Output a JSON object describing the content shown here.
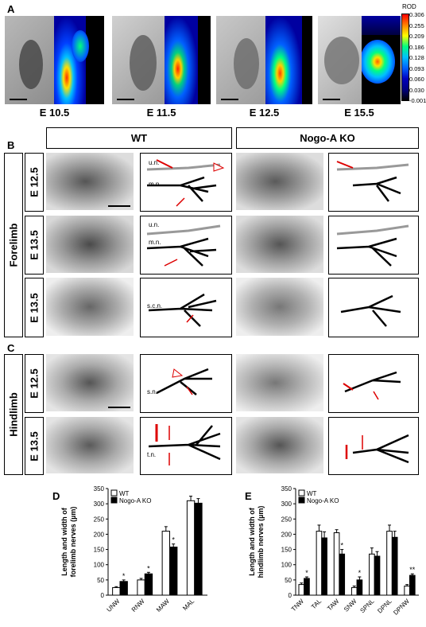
{
  "panels": {
    "A": "A",
    "B": "B",
    "C": "C",
    "D": "D",
    "E": "E"
  },
  "panelA": {
    "stages": [
      "E 10.5",
      "E 11.5",
      "E 12.5",
      "E 15.5"
    ],
    "colorbar": {
      "title": "ROD",
      "ticks": [
        "0.306",
        "0.255",
        "0.209",
        "0.186",
        "0.128",
        "0.093",
        "0.060",
        "0.030",
        "-0.001"
      ],
      "colors": [
        "#ff0000",
        "#ff8000",
        "#ffff00",
        "#00ff80",
        "#00c0ff",
        "#0060ff",
        "#0000c0",
        "#000080",
        "#000000"
      ]
    }
  },
  "headers": {
    "wt": "WT",
    "ko": "Nogo-A KO"
  },
  "sections": {
    "forelimb": "Forelimb",
    "hindlimb": "Hindlimb"
  },
  "rows": {
    "b1": "E 12.5",
    "b2": "E 13.5",
    "b3": "E 13.5",
    "c1": "E 12.5",
    "c2": "E 13.5"
  },
  "nerve_labels": {
    "un": "u.n.",
    "mn": "m.n.",
    "un2": "u.n.",
    "mn2": "m.n.",
    "scn": "s.c.n.",
    "sn": "s.n.",
    "tn": "t.n."
  },
  "chart_data": [
    {
      "type": "bar",
      "panel": "D",
      "categories": [
        "UNW",
        "RNW",
        "MAW",
        "MAL"
      ],
      "series": [
        {
          "name": "WT",
          "color": "#ffffff",
          "values": [
            25,
            50,
            210,
            310
          ],
          "errors": [
            3,
            5,
            15,
            15
          ]
        },
        {
          "name": "Nogo-A KO",
          "color": "#000000",
          "values": [
            45,
            70,
            158,
            302
          ],
          "errors": [
            5,
            5,
            10,
            15
          ]
        }
      ],
      "significance": [
        "*",
        "*",
        "*",
        ""
      ],
      "ylabel": "Length and width of forelimb nerves (µm)",
      "ylim": [
        0,
        350
      ],
      "yticks": [
        0,
        50,
        100,
        150,
        200,
        250,
        300,
        350
      ],
      "legend": "top-left"
    },
    {
      "type": "bar",
      "panel": "E",
      "categories": [
        "TNW",
        "TAL",
        "TAW",
        "SNW",
        "SPNL",
        "DPNL",
        "DPNW"
      ],
      "series": [
        {
          "name": "WT",
          "color": "#ffffff",
          "values": [
            35,
            210,
            205,
            25,
            135,
            210,
            30
          ],
          "errors": [
            5,
            20,
            10,
            5,
            20,
            20,
            5
          ]
        },
        {
          "name": "Nogo-A KO",
          "color": "#000000",
          "values": [
            55,
            188,
            135,
            50,
            128,
            190,
            65
          ],
          "errors": [
            5,
            20,
            15,
            10,
            15,
            20,
            5
          ]
        }
      ],
      "significance": [
        "*",
        "",
        "*",
        "*",
        "",
        "",
        "**"
      ],
      "ylabel": "Length and width of hindlimb nerves (µm)",
      "ylim": [
        0,
        350
      ],
      "yticks": [
        0,
        50,
        100,
        150,
        200,
        250,
        300,
        350
      ],
      "legend": "top-left"
    }
  ]
}
